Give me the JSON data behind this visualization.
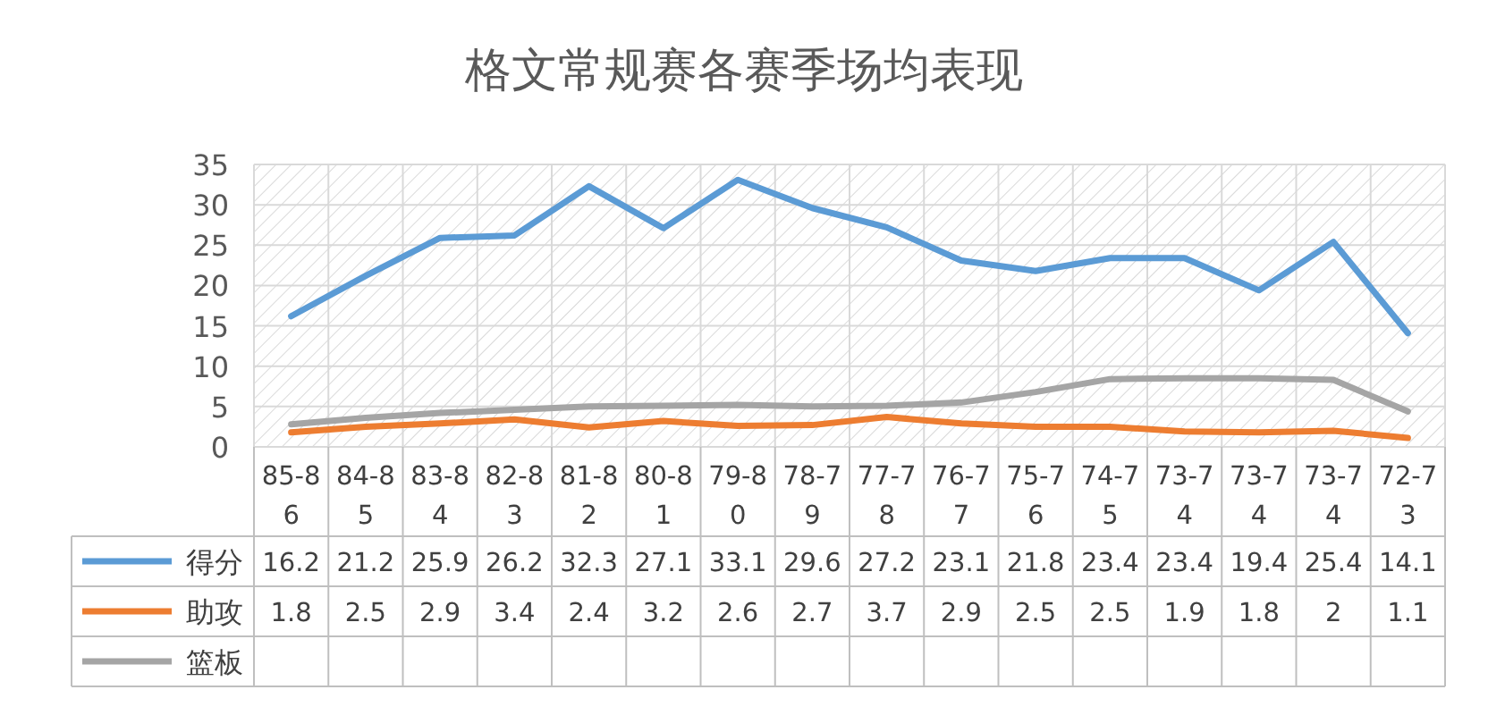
{
  "chart_data": {
    "type": "line",
    "title": "格文常规赛各赛季场均表现",
    "categories": [
      "85-86",
      "84-85",
      "83-84",
      "82-83",
      "81-82",
      "80-81",
      "79-80",
      "78-79",
      "77-78",
      "76-77",
      "75-76",
      "74-75",
      "73-74",
      "73-74",
      "73-74",
      "72-73"
    ],
    "series": [
      {
        "name": "得分",
        "color": "#5b9bd5",
        "values": [
          16.2,
          21.2,
          25.9,
          26.2,
          32.3,
          27.1,
          33.1,
          29.6,
          27.2,
          23.1,
          21.8,
          23.4,
          23.4,
          19.4,
          25.4,
          14.1
        ],
        "value_labels": [
          "16.2",
          "21.2",
          "25.9",
          "26.2",
          "32.3",
          "27.1",
          "33.1",
          "29.6",
          "27.2",
          "23.1",
          "21.8",
          "23.4",
          "23.4",
          "19.4",
          "25.4",
          "14.1"
        ]
      },
      {
        "name": "助攻",
        "color": "#ed7d31",
        "values": [
          1.8,
          2.5,
          2.9,
          3.4,
          2.4,
          3.2,
          2.6,
          2.7,
          3.7,
          2.9,
          2.5,
          2.5,
          1.9,
          1.8,
          2,
          1.1
        ],
        "value_labels": [
          "1.8",
          "2.5",
          "2.9",
          "3.4",
          "2.4",
          "3.2",
          "2.6",
          "2.7",
          "3.7",
          "2.9",
          "2.5",
          "2.5",
          "1.9",
          "1.8",
          "2",
          "1.1"
        ]
      },
      {
        "name": "篮板",
        "color": "#a5a5a5",
        "values": [
          2.8,
          3.6,
          4.2,
          4.6,
          5.0,
          5.1,
          5.2,
          5.0,
          5.1,
          5.5,
          6.8,
          8.4,
          8.5,
          8.5,
          8.3,
          4.4
        ]
      }
    ],
    "ylim": [
      0,
      35
    ],
    "yticks": [
      0,
      5,
      10,
      15,
      20,
      25,
      30,
      35
    ],
    "grid": true,
    "legend": "bottom"
  }
}
